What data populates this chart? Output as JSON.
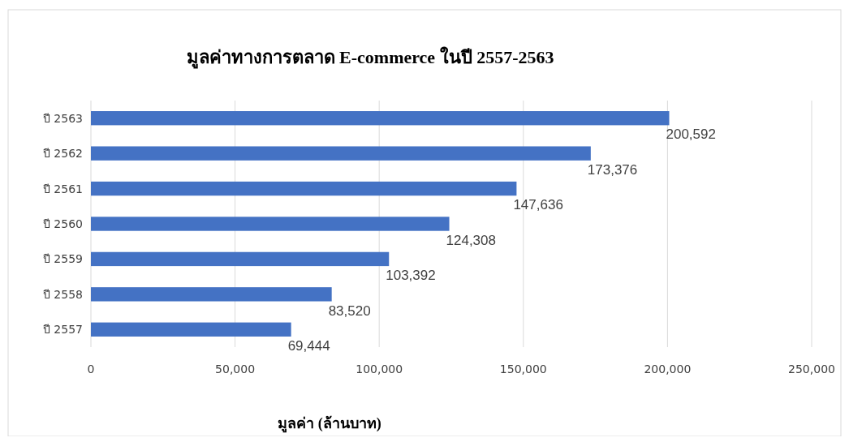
{
  "chart_data": {
    "type": "bar",
    "orientation": "horizontal",
    "title": "มูลค่าทางการตลาด E-commerce ในปี 2557-2563",
    "xlabel": "มูลค่า (ล้านบาท)",
    "categories": [
      "ปี 2563",
      "ปี 2562",
      "ปี 2561",
      "ปี 2560",
      "ปี 2559",
      "ปี 2558",
      "ปี 2557"
    ],
    "values": [
      200592,
      173376,
      147636,
      124308,
      103392,
      83520,
      69444
    ],
    "color": "#4472c4",
    "xlim": [
      0,
      250000
    ],
    "xticks": [
      {
        "value": 0,
        "label": "0"
      },
      {
        "value": 50000,
        "label": "50,000"
      },
      {
        "value": 100000,
        "label": "100,000"
      },
      {
        "value": 150000,
        "label": "150,000"
      },
      {
        "value": 200000,
        "label": "200,000"
      },
      {
        "value": 250000,
        "label": "250,000"
      }
    ],
    "value_labels": [
      "200,592",
      "173,376",
      "147,636",
      "124,308",
      "103,392",
      "83,520",
      "69,444"
    ],
    "grid": "x"
  }
}
